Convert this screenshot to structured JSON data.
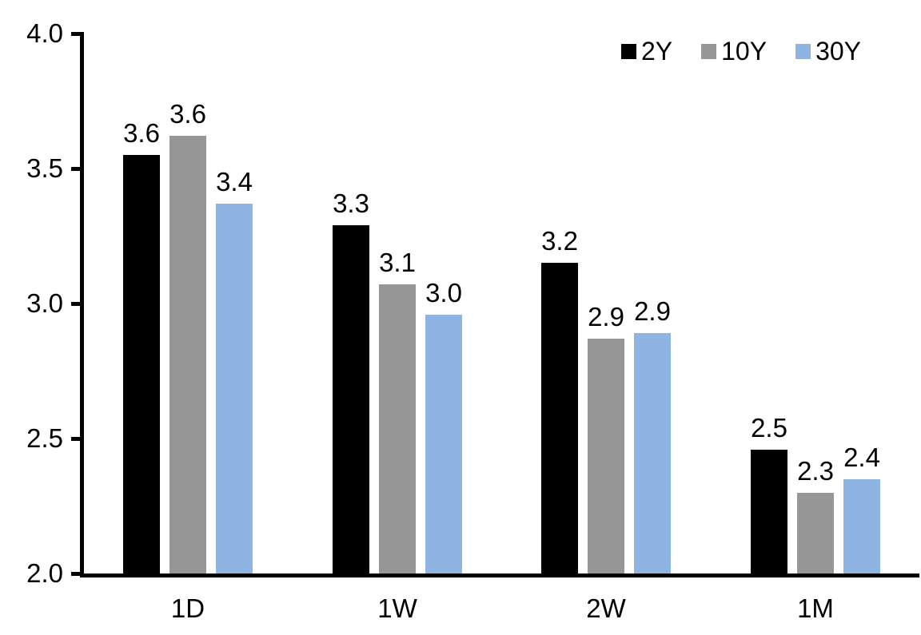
{
  "chart_data": {
    "type": "bar",
    "title": "",
    "categories": [
      "1D",
      "1W",
      "2W",
      "1M"
    ],
    "series": [
      {
        "name": "2Y",
        "color": "#000000",
        "values": [
          3.55,
          3.29,
          3.15,
          2.46
        ],
        "labels": [
          "3.6",
          "3.3",
          "3.2",
          "2.5"
        ]
      },
      {
        "name": "10Y",
        "color": "#969696",
        "values": [
          3.62,
          3.07,
          2.87,
          2.3
        ],
        "labels": [
          "3.6",
          "3.1",
          "2.9",
          "2.3"
        ]
      },
      {
        "name": "30Y",
        "color": "#8DB4E2",
        "values": [
          3.37,
          2.96,
          2.89,
          2.35
        ],
        "labels": [
          "3.4",
          "3.0",
          "2.9",
          "2.4"
        ]
      }
    ],
    "y_axis": {
      "min": 2.0,
      "max": 4.0,
      "tick_step": 0.5,
      "tick_labels": [
        "2.0",
        "2.5",
        "3.0",
        "3.5",
        "4.0"
      ]
    },
    "legend": {
      "position": "top-right",
      "entries": [
        "2Y",
        "10Y",
        "30Y"
      ]
    },
    "grid": false,
    "data_labels_shown": true,
    "colors": {
      "axis": "#000000",
      "text": "#000000",
      "background": "#FFFFFF"
    }
  }
}
